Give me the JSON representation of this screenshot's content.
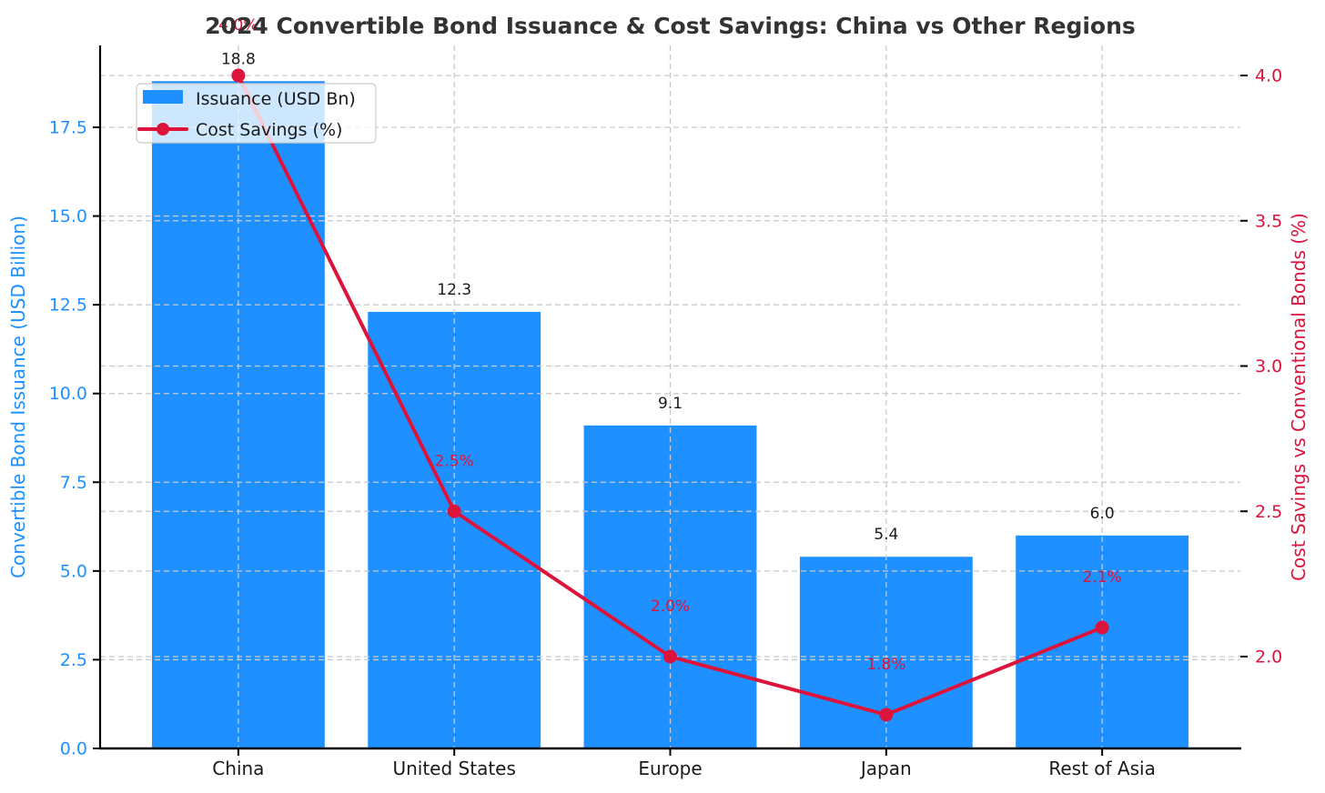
{
  "chart_data": {
    "type": "bar+line-dual-axis",
    "title": "2024 Convertible Bond Issuance & Cost Savings: China vs Other Regions",
    "categories": [
      "China",
      "United States",
      "Europe",
      "Japan",
      "Rest of Asia"
    ],
    "series": [
      {
        "name": "Issuance (USD Bn)",
        "type": "bar",
        "axis": "left",
        "color": "#1E90FF",
        "values": [
          18.8,
          12.3,
          9.1,
          5.4,
          6.0
        ],
        "value_labels": [
          "18.8",
          "12.3",
          "9.1",
          "5.4",
          "6.0"
        ]
      },
      {
        "name": "Cost Savings (%)",
        "type": "line",
        "axis": "right",
        "color": "#DC143C",
        "values": [
          4.0,
          2.5,
          2.0,
          1.8,
          2.1
        ],
        "value_labels": [
          "4.0%",
          "2.5%",
          "2.0%",
          "1.8%",
          "2.1%"
        ]
      }
    ],
    "left_axis": {
      "label": "Convertible Bond Issuance (USD Billion)",
      "color": "#1E90FF",
      "ticks": [
        0.0,
        2.5,
        5.0,
        7.5,
        10.0,
        12.5,
        15.0,
        17.5
      ],
      "tick_labels": [
        "0.0",
        "2.5",
        "5.0",
        "7.5",
        "10.0",
        "12.5",
        "15.0",
        "17.5"
      ],
      "range": [
        0,
        19.8
      ]
    },
    "right_axis": {
      "label": "Cost Savings vs Conventional Bonds (%)",
      "color": "#DC143C",
      "ticks": [
        2.0,
        2.5,
        3.0,
        3.5,
        4.0
      ],
      "tick_labels": [
        "2.0",
        "2.5",
        "3.0",
        "3.5",
        "4.0"
      ],
      "range": [
        1.69,
        4.12
      ]
    },
    "legend": {
      "position": "upper left",
      "items": [
        {
          "label": "Issuance (USD Bn)",
          "type": "patch",
          "color": "#1E90FF"
        },
        {
          "label": "Cost Savings (%)",
          "type": "line-marker",
          "color": "#DC143C"
        }
      ]
    },
    "grid": {
      "horizontal": "both-axes-dashed",
      "vertical": "category-centers-dashed",
      "color": "#c9c9c9"
    },
    "colors": {
      "bar": "#1E90FF",
      "line": "#DC143C",
      "title": "#333333",
      "black_text": "#1a1a1a",
      "grid": "#c9c9c9",
      "legend_bg_alpha": "rgba(255,255,255,0.78)",
      "legend_border": "#cccccc",
      "spine": "#000000"
    }
  }
}
